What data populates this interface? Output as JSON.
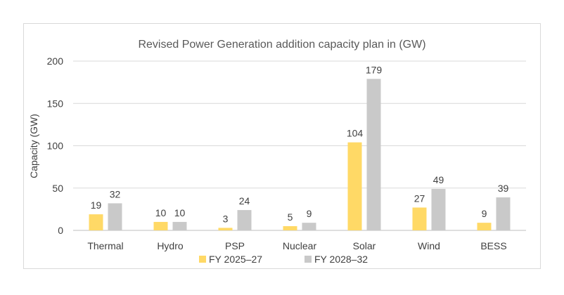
{
  "chart_data": {
    "type": "bar",
    "title": "Revised Power Generation addition capacity plan in (GW)",
    "xlabel": "",
    "ylabel": "Capacity (GW)",
    "ylim": [
      0,
      200
    ],
    "yticks": [
      0,
      50,
      100,
      150,
      200
    ],
    "grid": true,
    "legend_position": "bottom",
    "categories": [
      "Thermal",
      "Hydro",
      "PSP",
      "Nuclear",
      "Solar",
      "Wind",
      "BESS"
    ],
    "series": [
      {
        "name": "FY 2025–27",
        "color": "#FFD966",
        "values": [
          19,
          10,
          3,
          5,
          104,
          27,
          9
        ]
      },
      {
        "name": "FY 2028–32",
        "color": "#C9C9C9",
        "values": [
          32,
          10,
          24,
          9,
          179,
          49,
          39
        ]
      }
    ]
  }
}
